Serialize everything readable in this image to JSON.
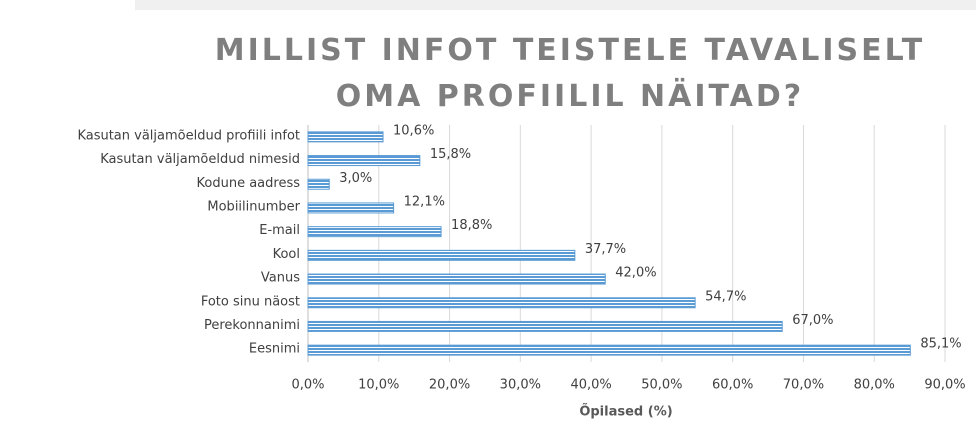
{
  "chart_data": {
    "type": "barh",
    "title": "MILLIST INFOT TEISTELE TAVALISELT OMA PROFIILIL NÄITAD?",
    "x_label": "Õpilased (%)",
    "categories": [
      "Kasutan väljamõeldud profiili infot",
      "Kasutan väljamõeldud nimesid",
      "Kodune aadress",
      "Mobiilinumber",
      "E-mail",
      "Kool",
      "Vanus",
      "Foto sinu näost",
      "Perekonnanimi",
      "Eesnimi"
    ],
    "values": [
      10.6,
      15.8,
      3.0,
      12.1,
      18.8,
      37.7,
      42.0,
      54.7,
      67.0,
      85.1
    ],
    "value_labels": [
      "10,6%",
      "15,8%",
      "3,0%",
      "12,1%",
      "18,8%",
      "37,7%",
      "42,0%",
      "54,7%",
      "67,0%",
      "85,1%"
    ],
    "color": "#5b9bd5",
    "xlim": [
      0,
      90
    ],
    "xticks": [
      {
        "value": 0,
        "label": "0,0%"
      },
      {
        "value": 10,
        "label": "10,0%"
      },
      {
        "value": 20,
        "label": "20,0%"
      },
      {
        "value": 30,
        "label": "30,0%"
      },
      {
        "value": 40,
        "label": "40,0%"
      },
      {
        "value": 50,
        "label": "50,0%"
      },
      {
        "value": 60,
        "label": "60,0%"
      },
      {
        "value": 70,
        "label": "70,0%"
      },
      {
        "value": 80,
        "label": "80,0%"
      },
      {
        "value": 90,
        "label": "90,0%"
      }
    ],
    "grid": true
  }
}
